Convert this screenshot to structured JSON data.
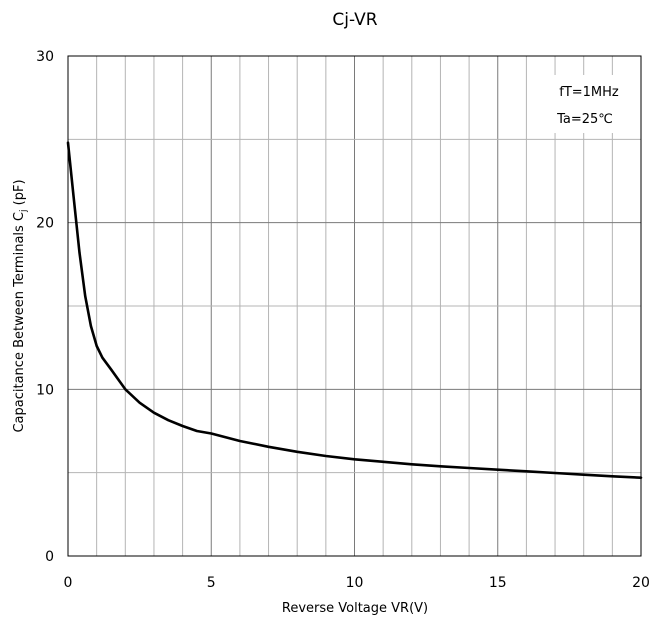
{
  "chart_data": {
    "type": "line",
    "title": "Cj-VR",
    "xlabel": "Reverse Voltage   VR(V)",
    "ylabel_main": "Capacitance Between Terminals C",
    "ylabel_sub": "j",
    "ylabel_tail": " (pF)",
    "xlim": [
      0,
      20
    ],
    "ylim": [
      0,
      30
    ],
    "x_ticks": [
      0,
      5,
      10,
      15,
      20
    ],
    "y_ticks": [
      0,
      10,
      20,
      30
    ],
    "x_tick_labels": [
      "0",
      "5",
      "10",
      "15",
      "20"
    ],
    "y_tick_labels": [
      "0",
      "10",
      "20",
      "30"
    ],
    "grid": true,
    "annotations": [
      "fT=1MHz",
      "Ta=25℃"
    ],
    "series": [
      {
        "color": "#000000",
        "x": [
          0,
          0.2,
          0.4,
          0.6,
          0.8,
          1.0,
          1.2,
          1.5,
          2.0,
          2.5,
          3.0,
          3.5,
          4.0,
          4.5,
          5.0,
          6.0,
          7.0,
          8.0,
          9.0,
          10.0,
          11.0,
          12.0,
          13.0,
          14.0,
          15.0,
          16.0,
          17.0,
          18.0,
          19.0,
          20.0
        ],
        "y": [
          24.8,
          21.5,
          18.2,
          15.6,
          13.8,
          12.6,
          11.9,
          11.2,
          10.0,
          9.2,
          8.6,
          8.15,
          7.8,
          7.5,
          7.35,
          6.9,
          6.55,
          6.25,
          6.0,
          5.8,
          5.65,
          5.5,
          5.38,
          5.28,
          5.18,
          5.08,
          4.98,
          4.88,
          4.78,
          4.7
        ]
      }
    ]
  }
}
